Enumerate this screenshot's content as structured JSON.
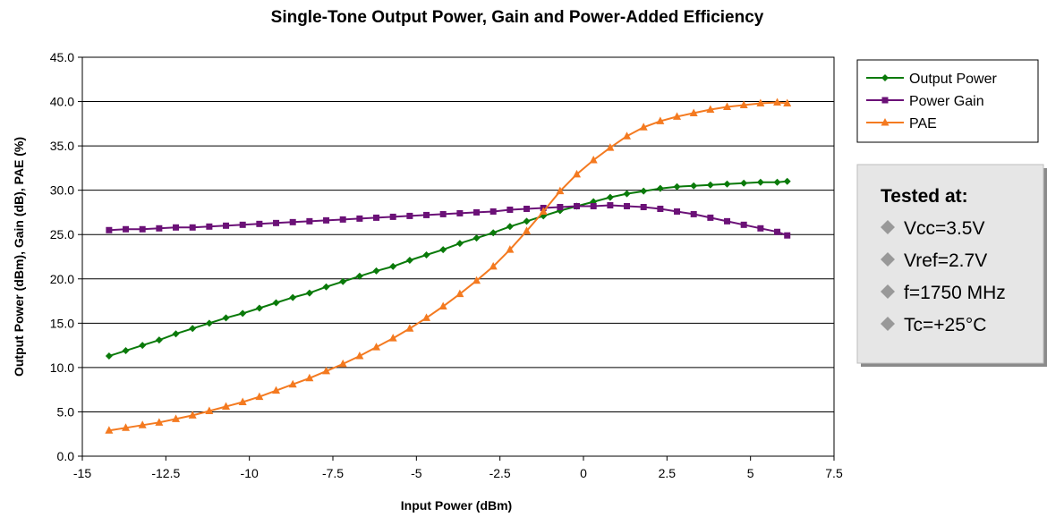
{
  "chart_data": {
    "type": "line",
    "title": "Single-Tone Output Power, Gain and Power-Added Efficiency",
    "xlabel": "Input Power (dBm)",
    "ylabel": "Output Power (dBm), Gain (dB), PAE (%)",
    "xlim": [
      -15,
      7.5
    ],
    "ylim": [
      0,
      45
    ],
    "x_ticks": [
      "-15",
      "-12.5",
      "-10",
      "-7.5",
      "-5",
      "-2.5",
      "0",
      "2.5",
      "5",
      "7.5"
    ],
    "y_ticks": [
      "0.0",
      "5.0",
      "10.0",
      "15.0",
      "20.0",
      "25.0",
      "30.0",
      "35.0",
      "40.0",
      "45.0"
    ],
    "grid": "horizontal",
    "legend_position": "top-right",
    "x": [
      -14.2,
      -13.7,
      -13.2,
      -12.7,
      -12.2,
      -11.7,
      -11.2,
      -10.7,
      -10.2,
      -9.7,
      -9.2,
      -8.7,
      -8.2,
      -7.7,
      -7.2,
      -6.7,
      -6.2,
      -5.7,
      -5.2,
      -4.7,
      -4.2,
      -3.7,
      -3.2,
      -2.7,
      -2.2,
      -1.7,
      -1.2,
      -0.7,
      -0.2,
      0.3,
      0.8,
      1.3,
      1.8,
      2.3,
      2.8,
      3.3,
      3.8,
      4.3,
      4.8,
      5.3,
      5.8,
      6.1
    ],
    "series": [
      {
        "name": "Output Power",
        "color": "#0a7a0a",
        "marker": "diamond",
        "values": [
          11.3,
          11.9,
          12.5,
          13.1,
          13.8,
          14.4,
          15.0,
          15.6,
          16.1,
          16.7,
          17.3,
          17.9,
          18.4,
          19.1,
          19.7,
          20.3,
          20.9,
          21.4,
          22.1,
          22.7,
          23.3,
          24.0,
          24.6,
          25.2,
          25.9,
          26.5,
          27.1,
          27.7,
          28.2,
          28.7,
          29.2,
          29.6,
          29.9,
          30.2,
          30.4,
          30.5,
          30.6,
          30.7,
          30.8,
          30.9,
          30.9,
          31.0
        ]
      },
      {
        "name": "Power Gain",
        "color": "#6b1177",
        "marker": "square",
        "values": [
          25.5,
          25.6,
          25.6,
          25.7,
          25.8,
          25.8,
          25.9,
          26.0,
          26.1,
          26.2,
          26.3,
          26.4,
          26.5,
          26.6,
          26.7,
          26.8,
          26.9,
          27.0,
          27.1,
          27.2,
          27.3,
          27.4,
          27.5,
          27.6,
          27.8,
          27.9,
          28.0,
          28.1,
          28.2,
          28.2,
          28.3,
          28.2,
          28.1,
          27.9,
          27.6,
          27.3,
          26.9,
          26.5,
          26.1,
          25.7,
          25.3,
          24.9
        ]
      },
      {
        "name": "PAE",
        "color": "#f47a20",
        "marker": "triangle",
        "values": [
          2.9,
          3.2,
          3.5,
          3.8,
          4.2,
          4.6,
          5.1,
          5.6,
          6.1,
          6.7,
          7.4,
          8.1,
          8.8,
          9.6,
          10.4,
          11.3,
          12.3,
          13.3,
          14.4,
          15.6,
          16.9,
          18.3,
          19.8,
          21.4,
          23.3,
          25.4,
          27.6,
          29.9,
          31.8,
          33.4,
          34.8,
          36.1,
          37.1,
          37.8,
          38.3,
          38.7,
          39.1,
          39.4,
          39.6,
          39.8,
          39.9,
          39.8
        ]
      }
    ]
  },
  "note_box": {
    "title": "Tested at:",
    "items": [
      "Vcc=3.5V",
      "Vref=2.7V",
      "f=1750 MHz",
      "Tc=+25°C"
    ],
    "bullet_color": "#999999"
  }
}
